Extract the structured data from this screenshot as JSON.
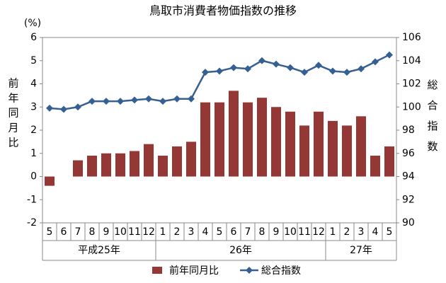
{
  "chart_data": {
    "type": "bar",
    "title": "鳥取市消費者物価指数の推移",
    "unit_label": "(%)",
    "ylabel": "前年同月比",
    "y2label": "総合指数",
    "category_groups": [
      {
        "name": "平成25年",
        "categories": [
          "5",
          "6",
          "7",
          "8",
          "9",
          "10",
          "11",
          "12"
        ]
      },
      {
        "name": "26年",
        "categories": [
          "1",
          "2",
          "3",
          "4",
          "5",
          "6",
          "7",
          "8",
          "9",
          "10",
          "11",
          "12"
        ]
      },
      {
        "name": "27年",
        "categories": [
          "1",
          "2",
          "3",
          "4",
          "5"
        ]
      }
    ],
    "series": [
      {
        "name": "前年同月比",
        "type": "bar",
        "color": "#953735",
        "values": [
          -0.4,
          0,
          0.7,
          0.9,
          1.0,
          1.0,
          1.1,
          1.4,
          0.9,
          1.3,
          1.5,
          3.2,
          3.2,
          3.7,
          3.2,
          3.4,
          3.0,
          2.8,
          2.2,
          2.8,
          2.4,
          2.2,
          2.6,
          0.9,
          1.3
        ]
      },
      {
        "name": "総合指数",
        "type": "line",
        "axis": "y2",
        "color": "#376092",
        "values": [
          99.9,
          99.8,
          100.0,
          100.5,
          100.5,
          100.5,
          100.6,
          100.7,
          100.5,
          100.7,
          100.7,
          103.0,
          103.1,
          103.4,
          103.3,
          104.0,
          103.7,
          103.4,
          103.0,
          103.6,
          103.1,
          103.0,
          103.3,
          103.9,
          104.5
        ]
      }
    ],
    "ylim": [
      -2,
      6
    ],
    "yticks": [
      -2,
      -1,
      0,
      1,
      2,
      3,
      4,
      5,
      6
    ],
    "y2lim": [
      90,
      106
    ],
    "y2ticks": [
      90,
      92,
      94,
      96,
      98,
      100,
      102,
      104,
      106
    ],
    "legend": "bottom"
  }
}
